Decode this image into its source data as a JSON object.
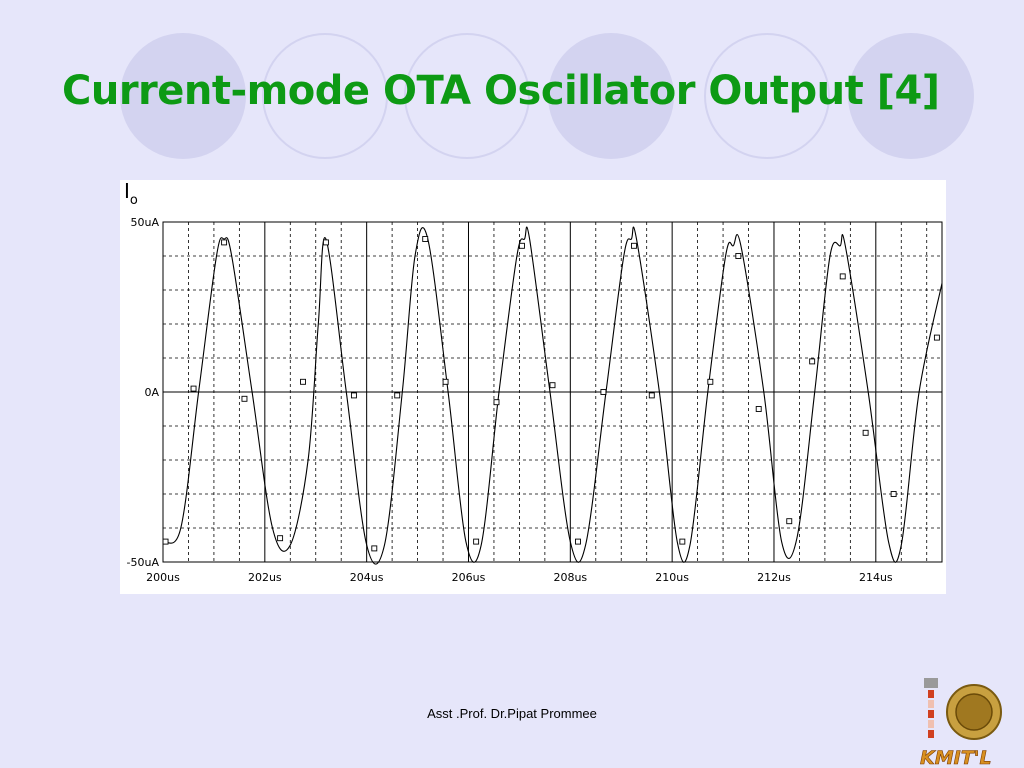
{
  "slide": {
    "title": "Current-mode OTA Oscillator Output [4]",
    "footer": "Asst .Prof. Dr.Pipat Prommee",
    "logo_text": "KMIT'L"
  },
  "colors": {
    "background": "#e6e6fa",
    "title": "#0d9a14",
    "decor": "#d3d3f0",
    "trace": "#000000",
    "grid": "#000000"
  },
  "chart_data": {
    "type": "line",
    "title": "Io",
    "xlabel": "",
    "ylabel": "Io",
    "x_unit": "us",
    "y_unit": "uA",
    "xlim": [
      200,
      215.3
    ],
    "ylim": [
      -50,
      50
    ],
    "grid": true,
    "x_ticks": [
      200,
      202,
      204,
      206,
      208,
      210,
      212,
      214
    ],
    "x_tick_labels": [
      "200us",
      "202us",
      "204us",
      "206us",
      "208us",
      "210us",
      "212us",
      "214us"
    ],
    "y_ticks": [
      50,
      0,
      -50
    ],
    "y_tick_labels": [
      "50uA",
      "0A",
      "-50uA"
    ],
    "series": [
      {
        "x": [
          200.0,
          200.35,
          200.7,
          201.05,
          201.2,
          201.35,
          201.75,
          202.15,
          202.5,
          202.85,
          203.05,
          203.2,
          203.6,
          204.0,
          204.35,
          204.7,
          204.95,
          205.2,
          205.6,
          205.95,
          206.25,
          206.6,
          206.95,
          207.1,
          207.2,
          207.6,
          208.0,
          208.3,
          208.7,
          209.05,
          209.2,
          209.3,
          209.75,
          210.1,
          210.35,
          210.7,
          211.05,
          211.2,
          211.35,
          211.8,
          212.15,
          212.45,
          212.8,
          213.1,
          213.3,
          213.4,
          213.85,
          214.25,
          214.5,
          214.85,
          215.3
        ],
        "y": [
          -44,
          -40,
          0,
          40,
          45,
          40,
          0,
          -40,
          -45,
          -20,
          20,
          45,
          0,
          -45,
          -45,
          0,
          40,
          45,
          0,
          -44,
          -45,
          0,
          40,
          45,
          45,
          0,
          -44,
          -45,
          0,
          40,
          45,
          45,
          0,
          -44,
          -45,
          0,
          40,
          43,
          43,
          0,
          -44,
          -43,
          0,
          40,
          43,
          43,
          0,
          -44,
          -45,
          0,
          32
        ]
      }
    ],
    "markers": {
      "x": [
        200.05,
        200.6,
        201.2,
        201.6,
        202.3,
        202.75,
        203.2,
        203.75,
        204.15,
        204.6,
        205.15,
        205.55,
        206.15,
        206.55,
        207.05,
        207.65,
        208.15,
        208.65,
        209.25,
        209.6,
        210.2,
        210.75,
        211.3,
        211.7,
        212.3,
        212.75,
        213.35,
        213.8,
        214.35,
        215.2
      ],
      "y": [
        -44,
        1,
        44,
        -2,
        -43,
        3,
        44,
        -1,
        -46,
        -1,
        45,
        3,
        -44,
        -3,
        43,
        2,
        -44,
        0,
        43,
        -1,
        -44,
        3,
        40,
        -5,
        -38,
        9,
        34,
        -12,
        -30,
        16
      ]
    }
  }
}
